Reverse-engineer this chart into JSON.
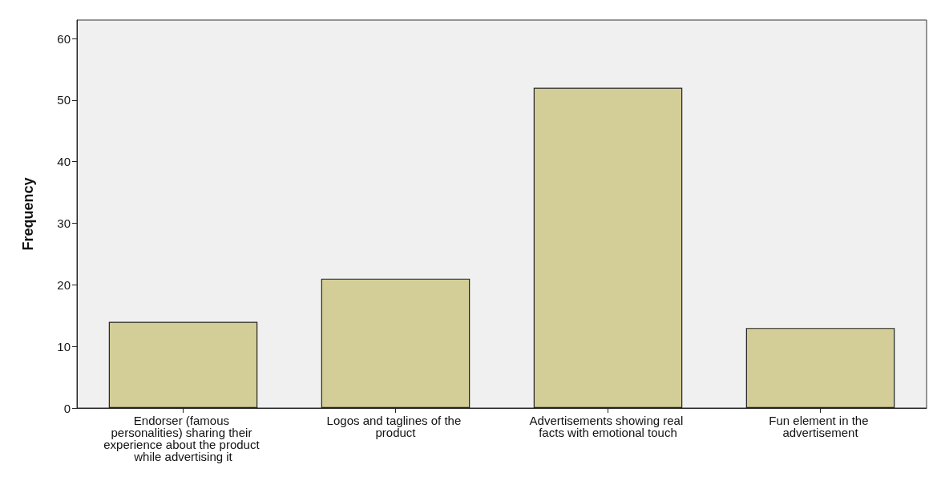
{
  "chart_data": {
    "type": "bar",
    "ylabel": "Frequency",
    "categories": [
      "Endorser (famous personalities) sharing their experience about the product while advertising it",
      "Logos and taglines of the product",
      "Advertisements showing real facts with emotional touch",
      "Fun element in the advertisement"
    ],
    "values": [
      14,
      21,
      52,
      13
    ],
    "color": "#d3ce97",
    "ylim": [
      0,
      63
    ],
    "yticks": [
      0,
      10,
      20,
      30,
      40,
      50,
      60
    ],
    "grid": false
  }
}
